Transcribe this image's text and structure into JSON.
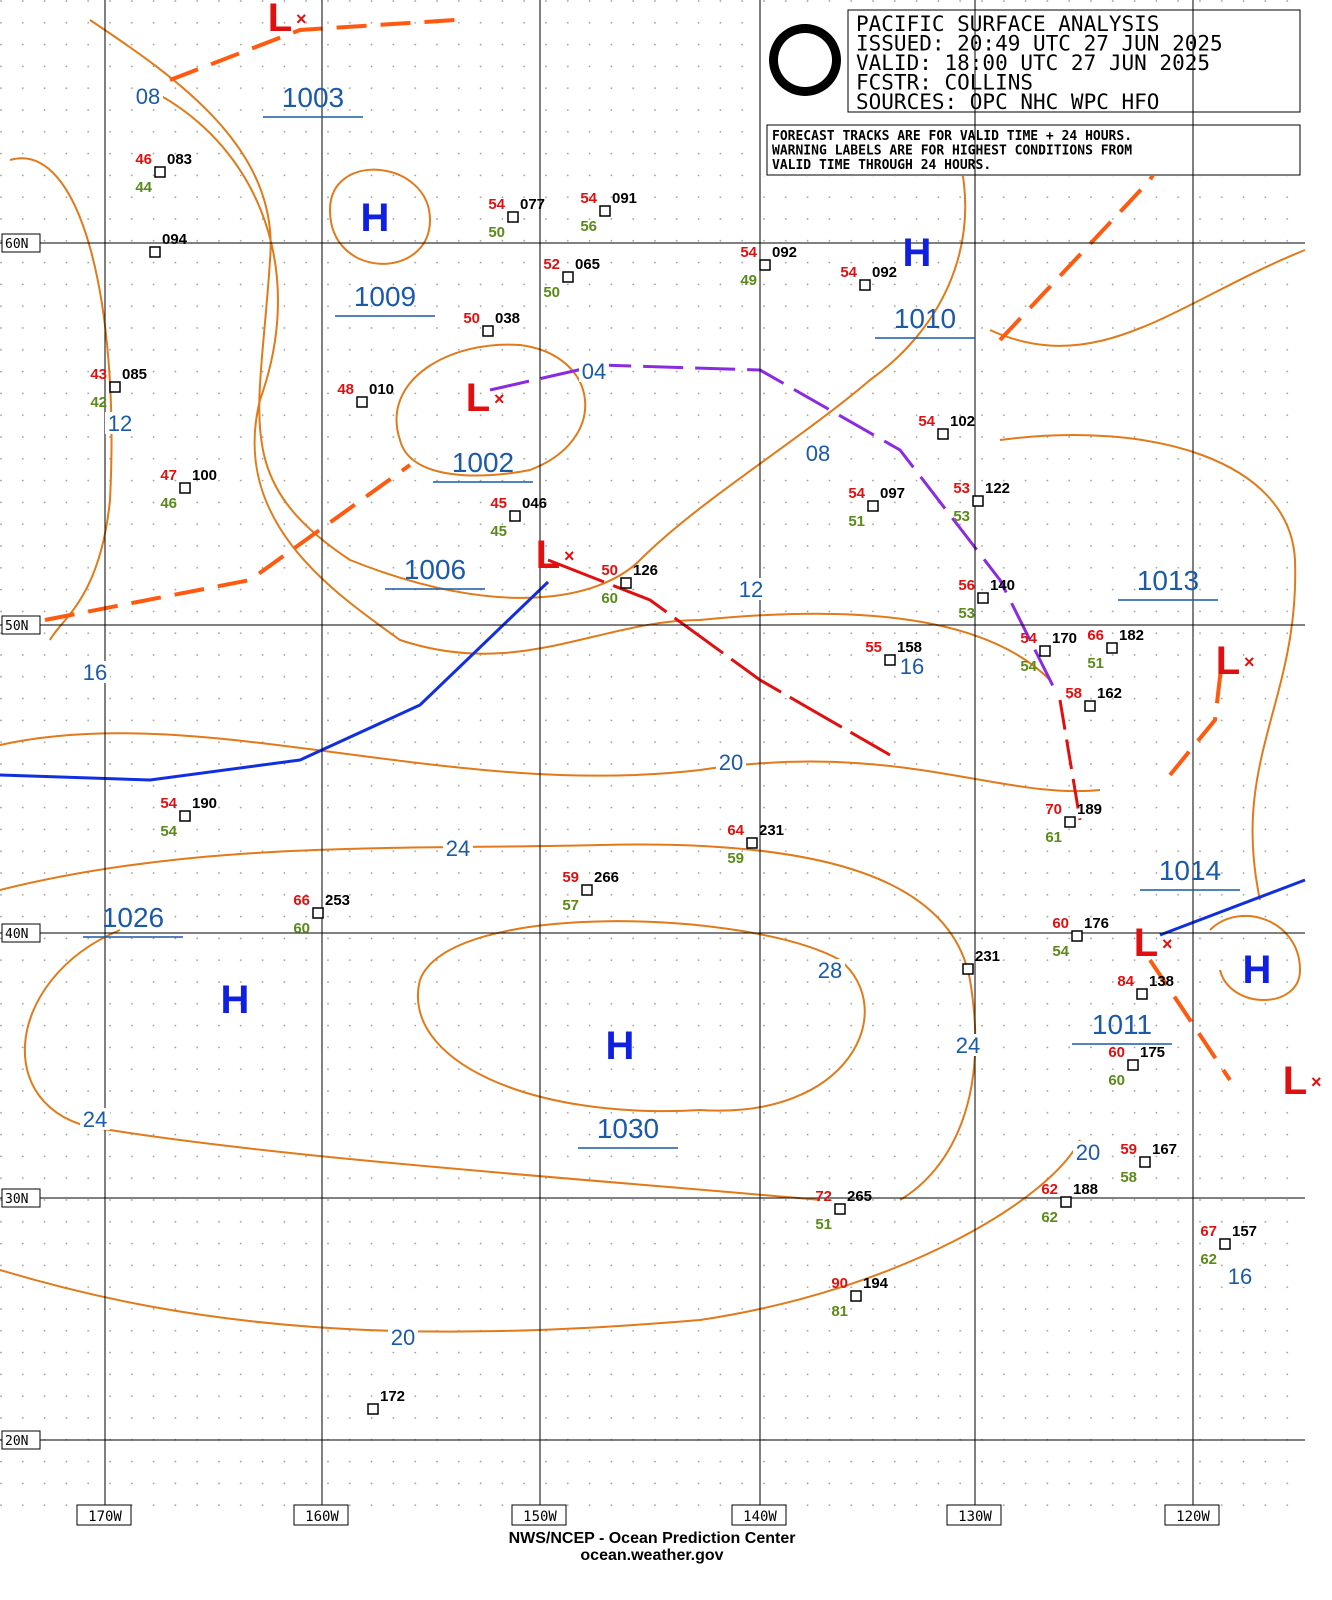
{
  "header": {
    "title": "PACIFIC SURFACE ANALYSIS",
    "issued": "ISSUED: 20:49 UTC 27 JUN 2025",
    "valid": "VALID:  18:00 UTC 27 JUN 2025",
    "forecaster": "FCSTR:  COLLINS",
    "sources": "SOURCES: OPC NHC WPC HFO"
  },
  "note": [
    "FORECAST TRACKS ARE FOR VALID TIME + 24 HOURS.",
    "WARNING LABELS ARE FOR HIGHEST CONDITIONS FROM",
    "VALID TIME THROUGH 24 HOURS."
  ],
  "latitudes": [
    "60N",
    "50N",
    "40N",
    "30N",
    "20N"
  ],
  "longitudes": [
    "170W",
    "160W",
    "150W",
    "140W",
    "130W",
    "120W"
  ],
  "highs": [
    "H",
    "H",
    "H",
    "H",
    "H"
  ],
  "lows": [
    "L",
    "L",
    "L",
    "L",
    "L",
    "L"
  ],
  "central_pressures": [
    "1003",
    "1009",
    "1002",
    "1006",
    "1010",
    "1013",
    "1026",
    "1030",
    "1014",
    "1011"
  ],
  "isobar_labels": [
    "08",
    "12",
    "04",
    "08",
    "12",
    "16",
    "16",
    "20",
    "24",
    "28",
    "24",
    "24",
    "20",
    "20",
    "16"
  ],
  "stations": [
    {
      "id": "083",
      "temp": 46,
      "dew": 44
    },
    {
      "id": "094"
    },
    {
      "id": "085",
      "temp": 43,
      "dew": 42
    },
    {
      "id": "100",
      "temp": 47,
      "dew": 46
    },
    {
      "id": "010",
      "temp": 48
    },
    {
      "id": "038",
      "temp": 50
    },
    {
      "id": "077",
      "temp": 54,
      "dew": 50
    },
    {
      "id": "091",
      "temp": 54,
      "dew": 56
    },
    {
      "id": "065",
      "temp": 52,
      "dew": 50
    },
    {
      "id": "092",
      "temp": 54,
      "dew": 49
    },
    {
      "id": "092",
      "temp": 54
    },
    {
      "id": "046",
      "temp": 45,
      "dew": 45
    },
    {
      "id": "126",
      "temp": 50,
      "dew": 60
    },
    {
      "id": "102",
      "temp": 54
    },
    {
      "id": "097",
      "temp": 54,
      "dew": 51
    },
    {
      "id": "122",
      "temp": 53,
      "dew": 53
    },
    {
      "id": "140",
      "temp": 56,
      "dew": 53
    },
    {
      "id": "158",
      "temp": 55
    },
    {
      "id": "170",
      "temp": 54,
      "dew": 54
    },
    {
      "id": "182",
      "temp": 66,
      "dew": 51
    },
    {
      "id": "162",
      "temp": 58
    },
    {
      "id": "189",
      "temp": 70,
      "dew": 61
    },
    {
      "id": "190",
      "temp": 54,
      "dew": 54
    },
    {
      "id": "231",
      "temp": 64,
      "dew": 59
    },
    {
      "id": "266",
      "temp": 59,
      "dew": 57
    },
    {
      "id": "253",
      "temp": 66,
      "dew": 60
    },
    {
      "id": "176",
      "temp": 60,
      "dew": 54
    },
    {
      "id": "231"
    },
    {
      "id": "138",
      "temp": 84
    },
    {
      "id": "175",
      "temp": 60,
      "dew": 60
    },
    {
      "id": "167",
      "temp": 59,
      "dew": 58
    },
    {
      "id": "188",
      "temp": 62,
      "dew": 62
    },
    {
      "id": "265",
      "temp": 72,
      "dew": 51
    },
    {
      "id": "194",
      "temp": 90,
      "dew": 81
    },
    {
      "id": "157",
      "temp": 67,
      "dew": 62
    },
    {
      "id": "172"
    }
  ],
  "footer": [
    "NWS/NCEP - Ocean Prediction Center",
    "ocean.weather.gov"
  ]
}
